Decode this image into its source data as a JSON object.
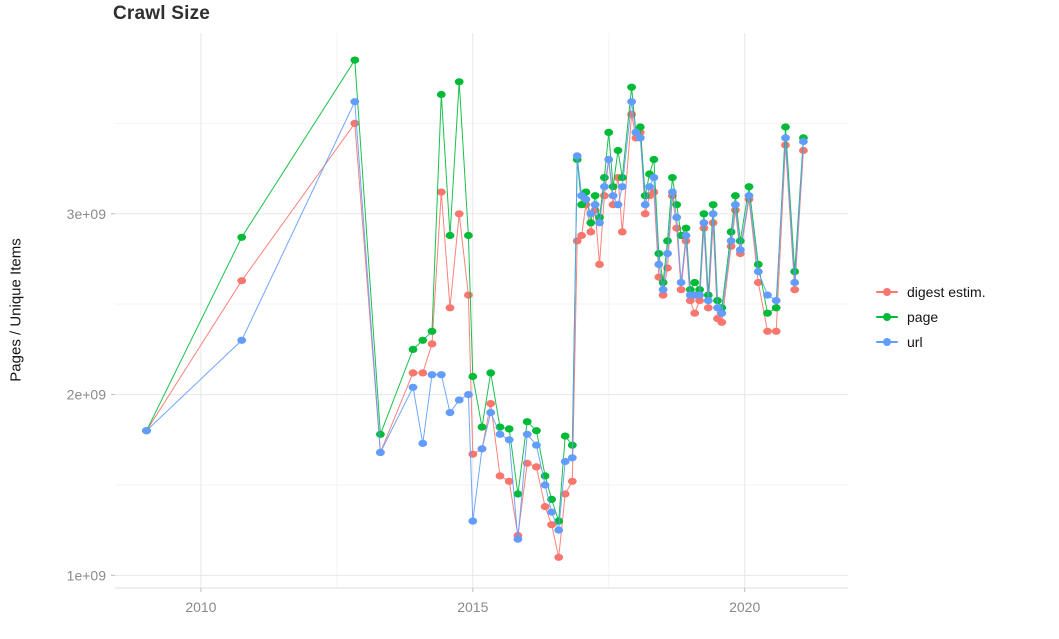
{
  "page": {
    "background": "#ffffff"
  },
  "chart_data": {
    "type": "line",
    "title": "Crawl Size",
    "xlabel": "",
    "ylabel": "Pages / Unique Items",
    "value_unit": "billions (1e9)",
    "legend_position": "right",
    "grid": true,
    "x_domain": [
      2008.42,
      2021.9
    ],
    "y_domain": [
      0.93,
      4.0
    ],
    "x_ticks": [
      {
        "value": 2010,
        "label": "2010"
      },
      {
        "value": 2015,
        "label": "2015"
      },
      {
        "value": 2020,
        "label": "2020"
      }
    ],
    "y_ticks": [
      {
        "value": 1,
        "label": "1e+09"
      },
      {
        "value": 2,
        "label": "2e+09"
      },
      {
        "value": 3,
        "label": "3e+09"
      }
    ],
    "x_minor_ticks": [
      2012.5,
      2017.5
    ],
    "y_minor_ticks": [
      1.5,
      2.5,
      3.5
    ],
    "x": [
      2009.0,
      2010.75,
      2012.83,
      2013.3,
      2013.9,
      2014.08,
      2014.25,
      2014.42,
      2014.58,
      2014.75,
      2014.92,
      2015.0,
      2015.17,
      2015.33,
      2015.5,
      2015.67,
      2015.83,
      2016.0,
      2016.17,
      2016.33,
      2016.45,
      2016.58,
      2016.7,
      2016.83,
      2016.92,
      2017.0,
      2017.08,
      2017.17,
      2017.25,
      2017.33,
      2017.42,
      2017.5,
      2017.58,
      2017.67,
      2017.75,
      2017.92,
      2018.0,
      2018.08,
      2018.17,
      2018.25,
      2018.33,
      2018.42,
      2018.5,
      2018.58,
      2018.67,
      2018.75,
      2018.83,
      2018.92,
      2019.0,
      2019.08,
      2019.17,
      2019.25,
      2019.33,
      2019.42,
      2019.5,
      2019.58,
      2019.75,
      2019.83,
      2019.92,
      2020.08,
      2020.25,
      2020.42,
      2020.58,
      2020.75,
      2020.92,
      2021.08
    ],
    "series": [
      {
        "name": "digest estim.",
        "color": "#F8766D",
        "values": [
          1.8,
          2.63,
          3.5,
          1.68,
          2.12,
          2.12,
          2.28,
          3.12,
          2.48,
          3.0,
          2.55,
          1.67,
          1.7,
          1.95,
          1.55,
          1.52,
          1.22,
          1.62,
          1.6,
          1.38,
          1.28,
          1.1,
          1.45,
          1.52,
          2.85,
          2.88,
          3.05,
          2.9,
          3.02,
          2.72,
          3.1,
          3.3,
          3.05,
          3.2,
          2.9,
          3.55,
          3.42,
          3.45,
          3.0,
          3.1,
          3.12,
          2.65,
          2.55,
          2.7,
          3.1,
          2.92,
          2.58,
          2.85,
          2.52,
          2.45,
          2.52,
          2.92,
          2.48,
          2.95,
          2.42,
          2.4,
          2.82,
          3.02,
          2.78,
          3.08,
          2.62,
          2.35,
          2.35,
          3.38,
          2.58,
          3.35
        ]
      },
      {
        "name": "page",
        "color": "#00BA38",
        "values": [
          1.8,
          2.87,
          3.85,
          1.78,
          2.25,
          2.3,
          2.35,
          3.66,
          2.88,
          3.73,
          2.88,
          2.1,
          1.82,
          2.12,
          1.82,
          1.81,
          1.45,
          1.85,
          1.8,
          1.55,
          1.42,
          1.3,
          1.77,
          1.72,
          3.3,
          3.05,
          3.12,
          2.95,
          3.1,
          2.98,
          3.2,
          3.45,
          3.15,
          3.35,
          3.2,
          3.7,
          3.45,
          3.48,
          3.1,
          3.22,
          3.3,
          2.78,
          2.62,
          2.85,
          3.2,
          3.05,
          2.88,
          2.92,
          2.58,
          2.62,
          2.58,
          3.0,
          2.55,
          3.05,
          2.52,
          2.48,
          2.9,
          3.1,
          2.85,
          3.15,
          2.72,
          2.45,
          2.48,
          3.48,
          2.68,
          3.42
        ]
      },
      {
        "name": "url",
        "color": "#619CFF",
        "values": [
          1.8,
          2.3,
          3.62,
          1.68,
          2.04,
          1.73,
          2.11,
          2.11,
          1.9,
          1.97,
          2.0,
          1.3,
          1.7,
          1.9,
          1.78,
          1.75,
          1.2,
          1.78,
          1.72,
          1.5,
          1.35,
          1.25,
          1.63,
          1.65,
          3.32,
          3.1,
          3.08,
          3.0,
          3.05,
          2.95,
          3.15,
          3.3,
          3.1,
          3.05,
          3.15,
          3.62,
          3.45,
          3.42,
          3.05,
          3.15,
          3.2,
          2.72,
          2.58,
          2.78,
          3.12,
          2.98,
          2.62,
          2.88,
          2.55,
          2.55,
          2.55,
          2.95,
          2.52,
          3.0,
          2.48,
          2.45,
          2.85,
          3.05,
          2.8,
          3.1,
          2.68,
          2.55,
          2.52,
          3.42,
          2.62,
          3.4
        ]
      }
    ]
  }
}
